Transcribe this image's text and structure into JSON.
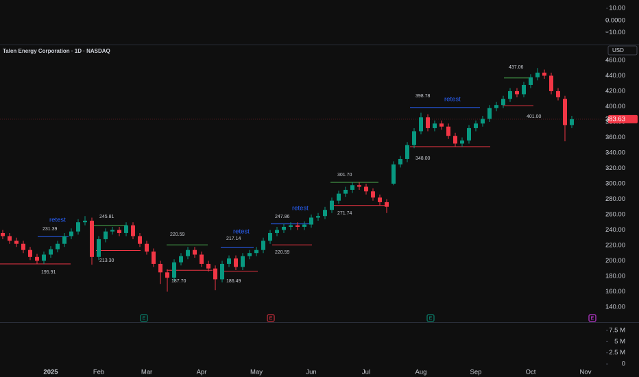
{
  "chart_data": {
    "type": "candlestick",
    "title": "Talen Energy Corporation · 1D · NASDAQ",
    "currency": "USD",
    "up_color": "#089981",
    "down_color": "#f23645",
    "categories": [
      null,
      null,
      null,
      null,
      null,
      null,
      null,
      "2025",
      null,
      null,
      null,
      null,
      null,
      null,
      "Feb",
      null,
      null,
      null,
      null,
      null,
      null,
      "Mar",
      null,
      null,
      null,
      null,
      null,
      null,
      null,
      "Apr",
      null,
      null,
      null,
      null,
      null,
      null,
      null,
      "May",
      null,
      null,
      null,
      null,
      null,
      null,
      null,
      "Jun",
      null,
      null,
      null,
      null,
      null,
      null,
      null,
      "Jul",
      null,
      null,
      null,
      null,
      null,
      null,
      null,
      "Aug",
      null,
      null,
      null,
      null,
      null,
      null,
      null,
      "Sep",
      null,
      null,
      null,
      null,
      null,
      null,
      null,
      "Oct",
      null,
      null,
      null,
      null,
      null,
      null,
      null,
      "Nov"
    ],
    "open": [
      236,
      232,
      226,
      222,
      214,
      205,
      200,
      208,
      215,
      222,
      232,
      238,
      250,
      252,
      205,
      228,
      238,
      240,
      236,
      246,
      232,
      222,
      212,
      196,
      185,
      178,
      198,
      206,
      214,
      208,
      196,
      190,
      176,
      196,
      203,
      192,
      206,
      210,
      214,
      226,
      236,
      240,
      244,
      246,
      244,
      247,
      256,
      258,
      266,
      278,
      287,
      292,
      298,
      296,
      290,
      282,
      276,
      300,
      325,
      332,
      350,
      368,
      386,
      372,
      378,
      374,
      362,
      352,
      356,
      372,
      378,
      384,
      398,
      402,
      410,
      420,
      416,
      428,
      438,
      444,
      440,
      420,
      410,
      376,
      null,
      null
    ],
    "high": [
      240,
      236,
      230,
      226,
      218,
      209,
      212,
      219,
      226,
      236,
      242,
      254,
      258,
      256,
      232,
      242,
      244,
      244,
      250,
      250,
      236,
      226,
      216,
      200,
      189,
      202,
      210,
      218,
      218,
      212,
      200,
      194,
      200,
      207,
      207,
      210,
      214,
      218,
      230,
      240,
      244,
      248,
      250,
      250,
      251,
      260,
      262,
      270,
      282,
      291,
      296,
      302,
      302,
      300,
      294,
      286,
      280,
      329,
      336,
      354,
      372,
      392,
      390,
      382,
      382,
      378,
      366,
      360,
      376,
      382,
      388,
      402,
      406,
      414,
      424,
      424,
      432,
      442,
      450,
      448,
      444,
      424,
      414,
      388,
      null,
      null
    ],
    "low": [
      228,
      222,
      218,
      210,
      201,
      196,
      196,
      204,
      211,
      218,
      228,
      234,
      246,
      195,
      201,
      224,
      234,
      232,
      232,
      228,
      218,
      208,
      192,
      170,
      160,
      174,
      194,
      202,
      204,
      192,
      186,
      162,
      172,
      192,
      188,
      188,
      202,
      206,
      210,
      222,
      232,
      236,
      240,
      240,
      240,
      243,
      252,
      254,
      262,
      274,
      283,
      288,
      292,
      286,
      278,
      272,
      262,
      298,
      321,
      328,
      346,
      364,
      368,
      368,
      370,
      358,
      348,
      348,
      352,
      368,
      374,
      380,
      394,
      398,
      406,
      412,
      412,
      424,
      434,
      436,
      416,
      408,
      355,
      372,
      null,
      null
    ],
    "close": [
      232,
      226,
      222,
      214,
      205,
      200,
      208,
      215,
      222,
      232,
      238,
      250,
      252,
      205,
      228,
      238,
      240,
      236,
      246,
      232,
      222,
      212,
      196,
      185,
      178,
      198,
      206,
      214,
      208,
      196,
      190,
      176,
      196,
      203,
      192,
      206,
      210,
      214,
      226,
      236,
      240,
      244,
      246,
      244,
      247,
      256,
      258,
      266,
      278,
      287,
      292,
      298,
      296,
      290,
      282,
      276,
      270,
      325,
      332,
      350,
      368,
      386,
      372,
      378,
      374,
      362,
      352,
      356,
      372,
      378,
      384,
      398,
      402,
      410,
      420,
      416,
      428,
      438,
      444,
      440,
      420,
      412,
      376,
      383.63,
      null,
      null
    ],
    "ylim": [
      120.4,
      480.4
    ],
    "yticks": [
      {
        "value": 140,
        "label": "140.00"
      },
      {
        "value": 160,
        "label": "160.00"
      },
      {
        "value": 180,
        "label": "180.00"
      },
      {
        "value": 200,
        "label": "200.00"
      },
      {
        "value": 220,
        "label": "220.00"
      },
      {
        "value": 240,
        "label": "240.00"
      },
      {
        "value": 260,
        "label": "260.00"
      },
      {
        "value": 280,
        "label": "280.00"
      },
      {
        "value": 300,
        "label": "300.00"
      },
      {
        "value": 320,
        "label": "320.00"
      },
      {
        "value": 340,
        "label": "340.00"
      },
      {
        "value": 360,
        "label": "360.00"
      },
      {
        "value": 380,
        "label": "380.00"
      },
      {
        "value": 400,
        "label": "400.00"
      },
      {
        "value": 420,
        "label": "420.00"
      },
      {
        "value": 440,
        "label": "440.00"
      },
      {
        "value": 460,
        "label": "460.00"
      }
    ],
    "last_price": 383.63,
    "levels": [
      {
        "value": 231.39,
        "color": "#2962ff"
      },
      {
        "value": 195.91,
        "color": "#f23645"
      },
      {
        "value": 245.81,
        "color": "#4caf50"
      },
      {
        "value": 213.3,
        "label": "213.30",
        "color": "#f23645"
      },
      {
        "value": 220.59,
        "color": "#4caf50"
      },
      {
        "value": 187.7,
        "label": "187.70",
        "color": "#f23645"
      },
      {
        "value": 217.14,
        "color": "#2962ff"
      },
      {
        "value": 186.49,
        "color": "#f23645"
      },
      {
        "value": 247.86,
        "color": "#2962ff"
      },
      {
        "value": 220.59,
        "color": "#f23645"
      },
      {
        "value": 301.7,
        "label": "301.70",
        "color": "#4caf50"
      },
      {
        "value": 271.74,
        "color": "#f23645"
      },
      {
        "value": 398.78,
        "color": "#2962ff"
      },
      {
        "value": 348,
        "label": "348.00",
        "color": "#f23645"
      },
      {
        "value": 437.06,
        "color": "#4caf50"
      },
      {
        "value": 401,
        "label": "401.00",
        "color": "#f23645"
      }
    ],
    "retests": [
      "retest",
      "retest",
      "retest",
      "retest"
    ],
    "earnings": [
      {
        "label": "E",
        "color": "#089981"
      },
      {
        "label": "E",
        "color": "#f23645"
      },
      {
        "label": "E",
        "color": "#089981"
      },
      {
        "label": "E",
        "color": "#e040fb"
      }
    ],
    "indicator": {
      "ylim": [
        -19.9,
        16.8
      ],
      "yticks": [
        {
          "value": 10,
          "label": "10.00"
        },
        {
          "value": 0,
          "label": "0.0000"
        },
        {
          "value": -10,
          "label": "−10.00"
        }
      ]
    },
    "volume": {
      "ylim": [
        -2900000,
        9340000
      ],
      "yticks": [
        {
          "value": 7500000,
          "label": "7.5 M"
        },
        {
          "value": 5000000,
          "label": "5 M"
        },
        {
          "value": 2500000,
          "label": "2.5 M"
        },
        0
      ]
    }
  }
}
